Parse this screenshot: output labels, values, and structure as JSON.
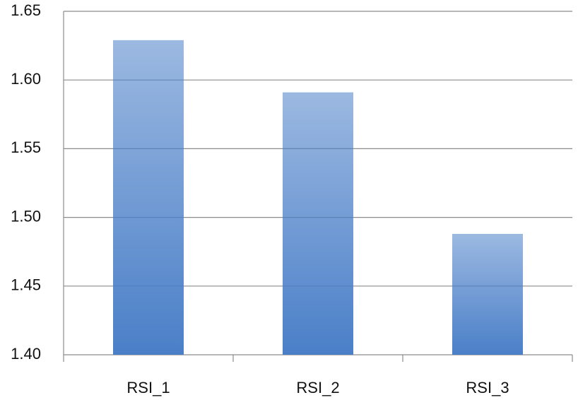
{
  "chart_data": {
    "type": "bar",
    "categories": [
      "RSI_1",
      "RSI_2",
      "RSI_3"
    ],
    "values": [
      1.629,
      1.591,
      1.488
    ],
    "color": "#4a7fc8",
    "ylim": [
      1.4,
      1.65
    ],
    "yticks": [
      {
        "value": 1.4,
        "label": "1.40"
      },
      1.45,
      {
        "value": 1.5,
        "label": "1.50"
      },
      1.55,
      {
        "value": 1.6,
        "label": "1.60"
      },
      1.65
    ],
    "grid": true
  }
}
